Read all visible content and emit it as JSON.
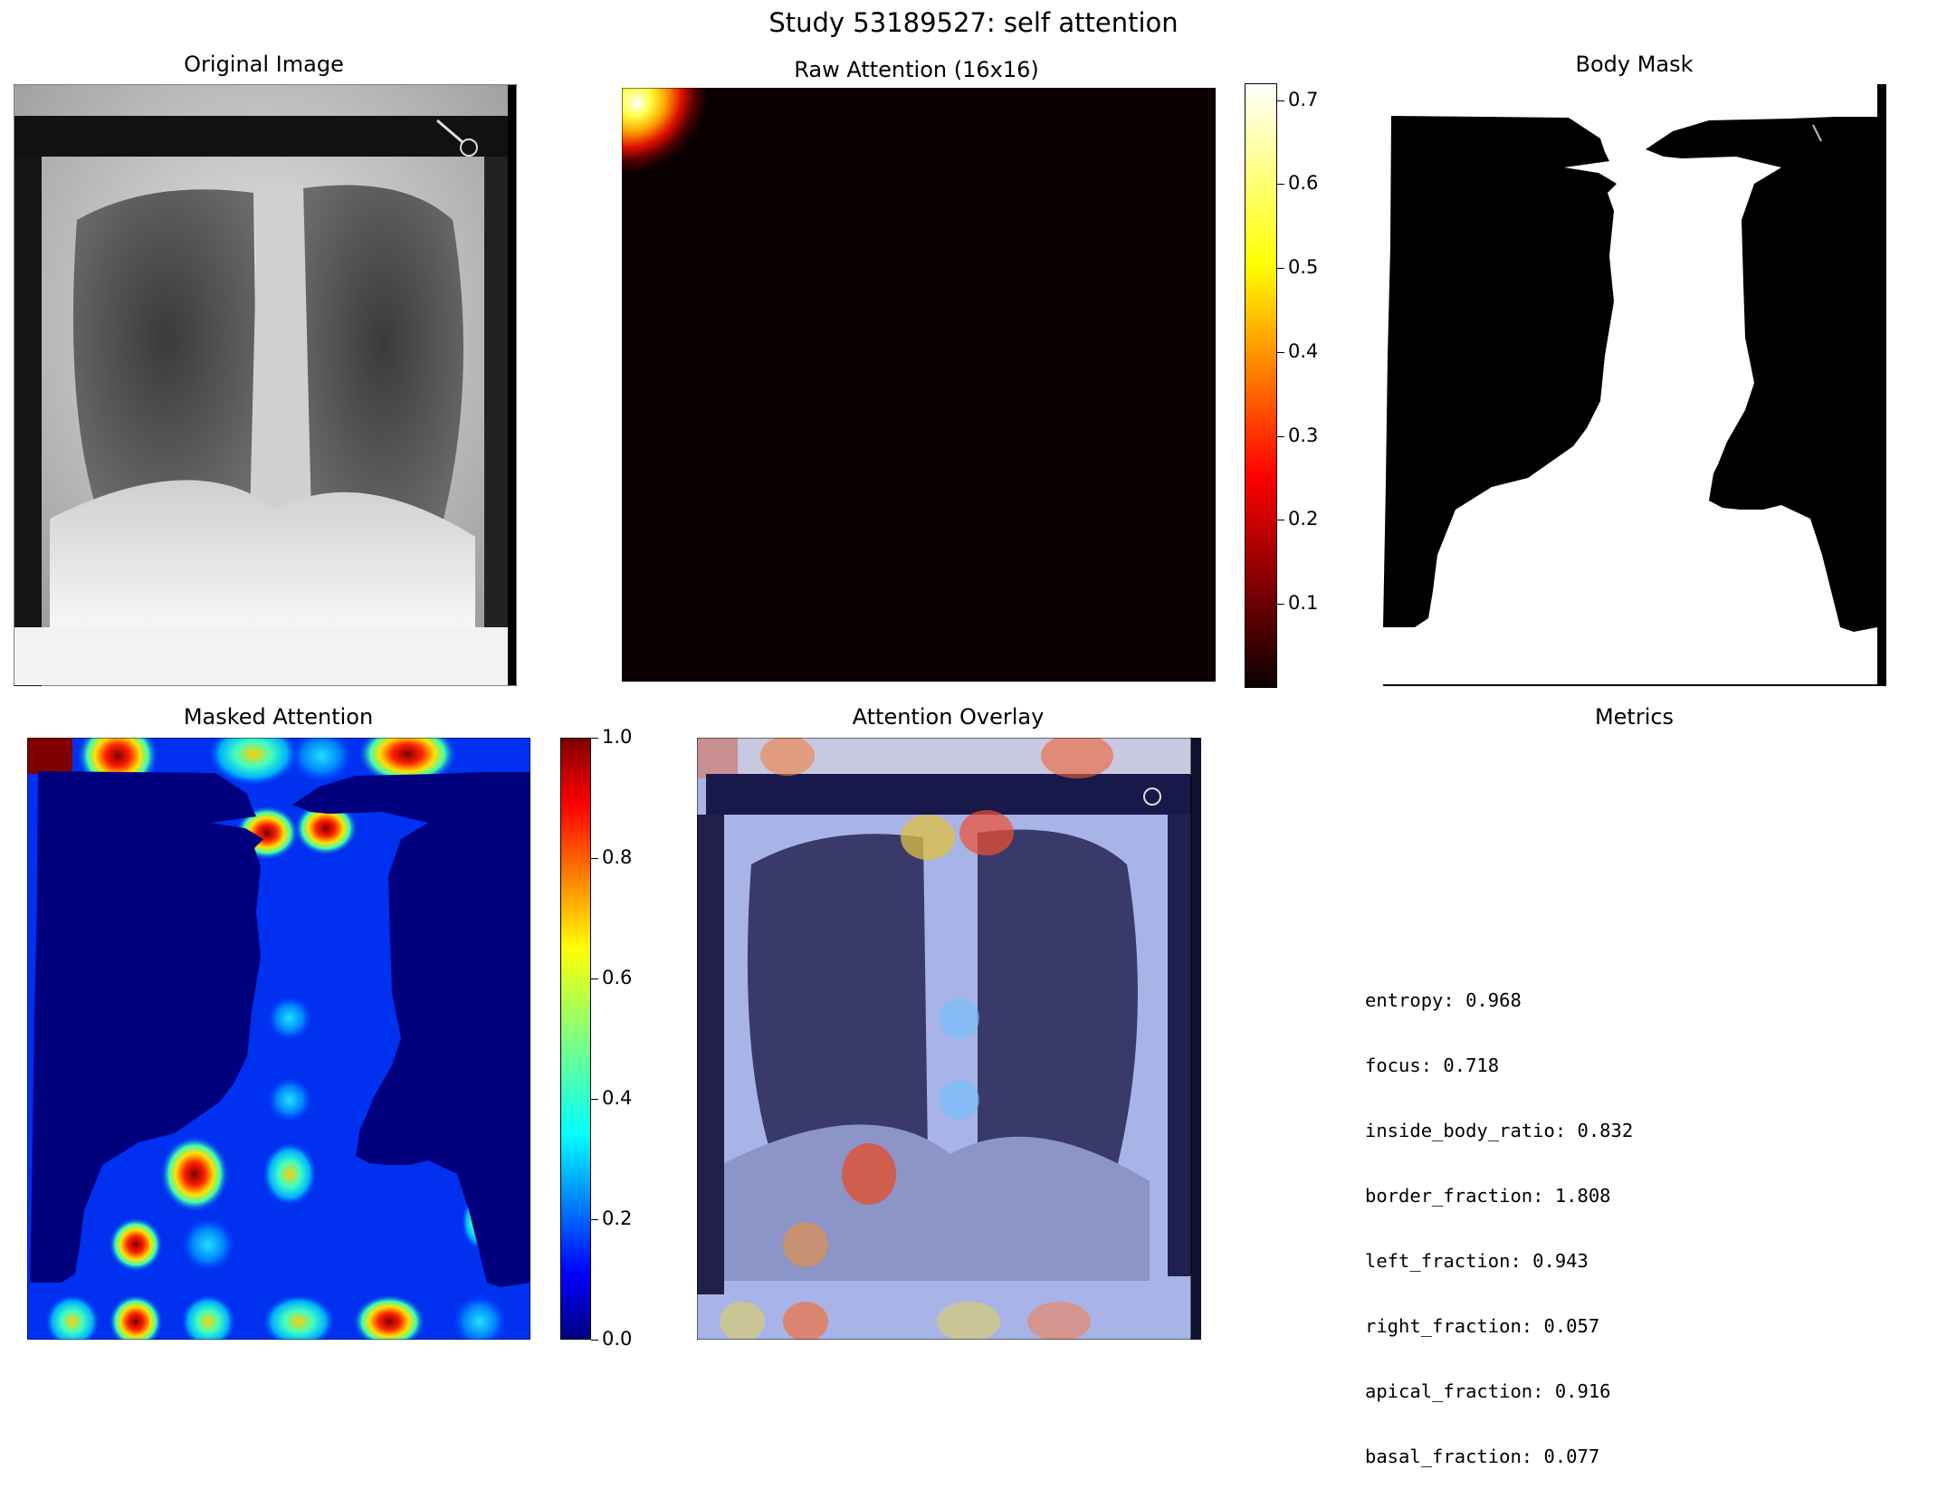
{
  "figure_title": "Study 53189527: self attention",
  "panels": {
    "original": {
      "title": "Original Image"
    },
    "raw": {
      "title": "Raw Attention (16x16)"
    },
    "mask": {
      "title": "Body Mask"
    },
    "masked": {
      "title": "Masked Attention"
    },
    "overlay": {
      "title": "Attention Overlay"
    },
    "metrics": {
      "title": "Metrics"
    }
  },
  "chart_data": [
    {
      "type": "heatmap",
      "title": "Raw Attention (16x16)",
      "grid": "16x16",
      "colormap": "hot",
      "colorbar": {
        "min": 0.0,
        "max": 0.72,
        "ticks": [
          "0.1",
          "0.2",
          "0.3",
          "0.4",
          "0.5",
          "0.6",
          "0.7"
        ],
        "tick_values": [
          0.1,
          0.2,
          0.3,
          0.4,
          0.5,
          0.6,
          0.7
        ]
      },
      "peak": {
        "row": 0,
        "col": 0,
        "value": 0.718
      }
    },
    {
      "type": "heatmap",
      "title": "Masked Attention",
      "colormap": "jet",
      "colorbar": {
        "min": 0.0,
        "max": 1.0,
        "ticks": [
          "0.0",
          "0.2",
          "0.4",
          "0.6",
          "0.8",
          "1.0"
        ],
        "tick_values": [
          0.0,
          0.2,
          0.4,
          0.6,
          0.8,
          1.0
        ]
      }
    }
  ],
  "metrics": [
    "entropy: 0.968",
    "focus: 0.718",
    "inside_body_ratio: 0.832",
    "border_fraction: 1.808",
    "left_fraction: 0.943",
    "right_fraction: 0.057",
    "apical_fraction: 0.916",
    "basal_fraction: 0.077"
  ],
  "colors": {
    "hot_bg": "#0b0000",
    "jet_low": "#00007f",
    "jet_high": "#7f0000"
  }
}
